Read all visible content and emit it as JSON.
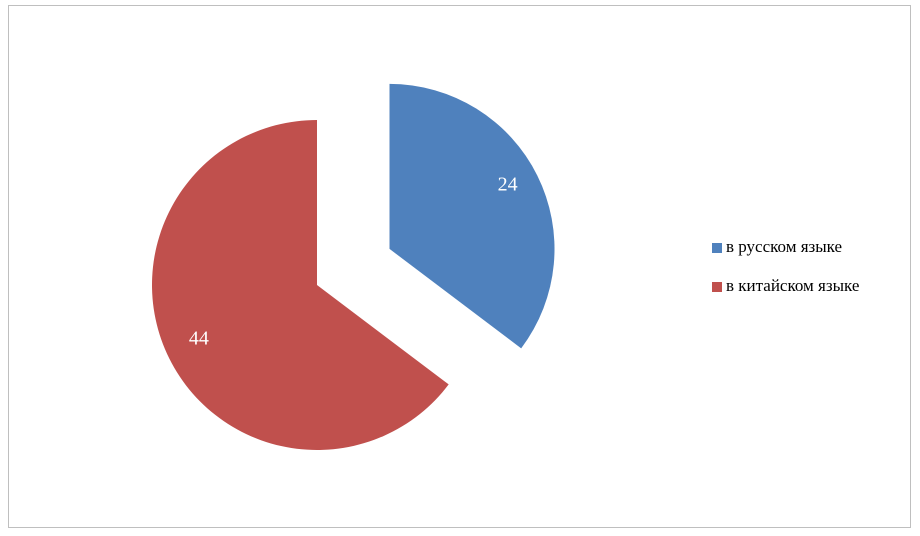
{
  "chart_data": {
    "type": "pie",
    "categories": [
      "в русском языке",
      "в китайском языке"
    ],
    "values": [
      24,
      44
    ],
    "colors": [
      "#4f81bd",
      "#c0504d"
    ],
    "legend": "right"
  }
}
